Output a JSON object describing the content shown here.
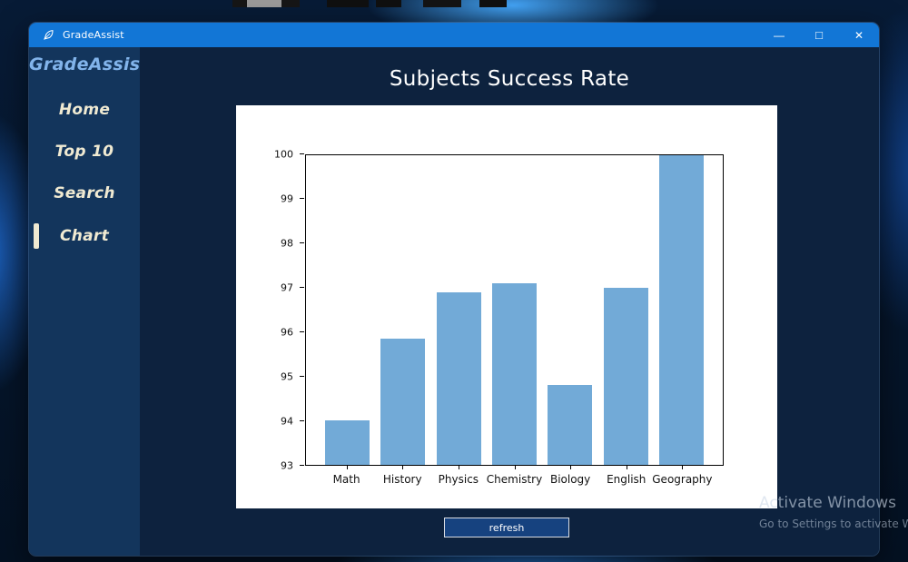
{
  "window": {
    "title": "GradeAssist",
    "controls": {
      "minimize": "—",
      "maximize": "□",
      "close": "✕"
    }
  },
  "sidebar": {
    "logo": "GradeAssist",
    "items": [
      {
        "label": "Home",
        "active": false
      },
      {
        "label": "Top 10",
        "active": false
      },
      {
        "label": "Search",
        "active": false
      },
      {
        "label": "Chart",
        "active": true
      }
    ]
  },
  "main": {
    "title": "Subjects Success Rate",
    "refresh_label": "refresh"
  },
  "chart_data": {
    "type": "bar",
    "title": "",
    "xlabel": "",
    "ylabel": "",
    "categories": [
      "Math",
      "History",
      "Physics",
      "Chemistry",
      "Biology",
      "English",
      "Geography"
    ],
    "values": [
      94.0,
      95.85,
      96.9,
      97.1,
      94.8,
      97.0,
      100.0
    ],
    "ylim": [
      93,
      100
    ],
    "yticks": [
      93,
      94,
      95,
      96,
      97,
      98,
      99,
      100
    ],
    "xlim": [
      -0.74,
      6.74
    ],
    "bar_width": 0.8,
    "bar_color": "#72aad7",
    "grid": false,
    "legend": "none"
  },
  "watermark": {
    "line1": "Activate Windows",
    "line2": "Go to Settings to activate W"
  },
  "colors": {
    "titlebar": "#1276d6",
    "sidebar": "#13355c",
    "content_bg": "#0d223e",
    "accent_cream": "#f0ead2",
    "logo_blue": "#82b4eb",
    "bar_blue": "#72aad7"
  }
}
